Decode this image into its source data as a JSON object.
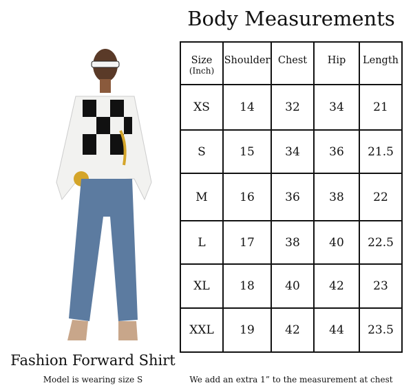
{
  "title": "Body Measurements",
  "table": {
    "headers": [
      {
        "label": "Size",
        "sub": "(Inch)"
      },
      {
        "label": "Shoulder"
      },
      {
        "label": "Chest"
      },
      {
        "label": "Hip"
      },
      {
        "label": "Length"
      }
    ],
    "rows": [
      [
        "XS",
        "14",
        "32",
        "34",
        "21"
      ],
      [
        "S",
        "15",
        "34",
        "36",
        "21.5"
      ],
      [
        "M",
        "16",
        "36",
        "38",
        "22"
      ],
      [
        "L",
        "17",
        "38",
        "40",
        "22.5"
      ],
      [
        "XL",
        "18",
        "40",
        "42",
        "23"
      ],
      [
        "XXL",
        "19",
        "42",
        "44",
        "23.5"
      ]
    ]
  },
  "product_name": "Fashion Forward Shirt",
  "model_note": "Model is wearing size S",
  "chest_note": "We add an extra 1” to the measurement at chest"
}
